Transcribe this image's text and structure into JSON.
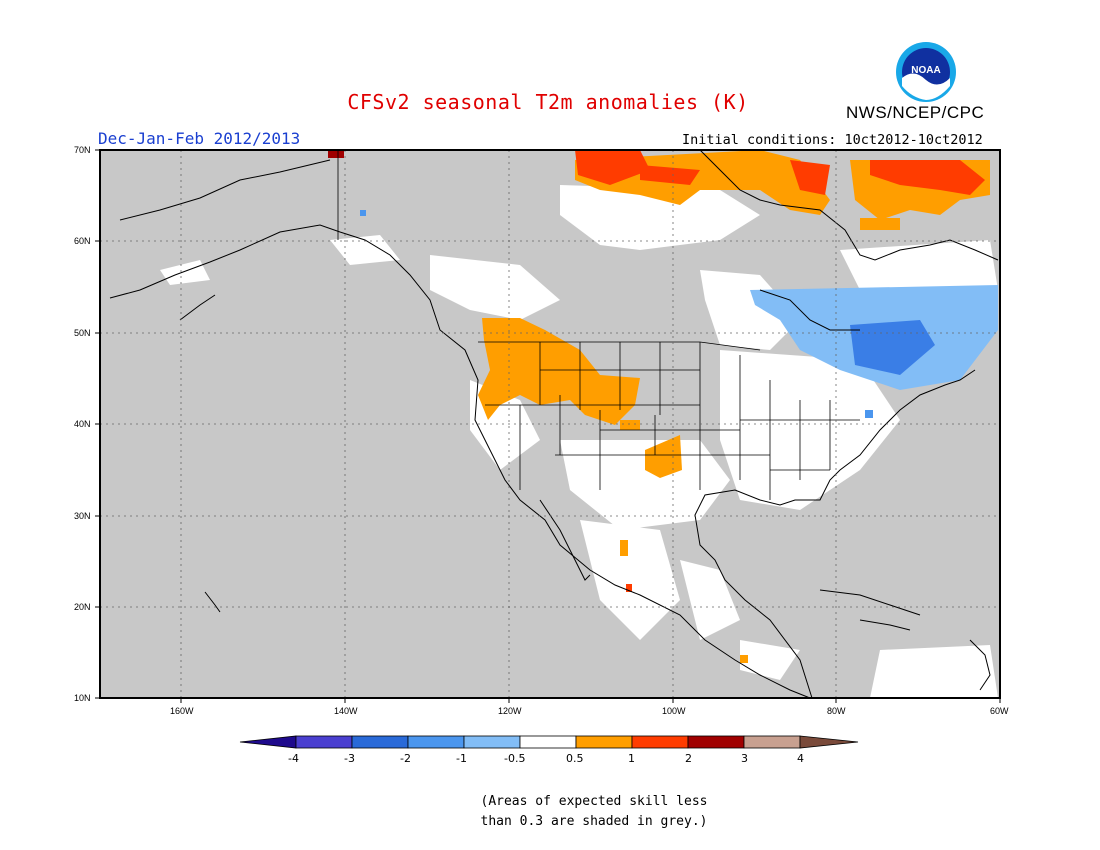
{
  "header": {
    "title": "CFSv2 seasonal T2m anomalies (K)",
    "agency": "NWS/NCEP/CPC",
    "period": "Dec-Jan-Feb 2012/2013",
    "initial_conditions": "Initial conditions: 10ct2012-10ct2012"
  },
  "logo": {
    "text": "NOAA",
    "name": "noaa-logo"
  },
  "map": {
    "background_color": "#c8c8c8",
    "lon_range": [
      -170,
      -60
    ],
    "lat_range": [
      10,
      70
    ],
    "lat_labels": [
      "70N",
      "60N",
      "50N",
      "40N",
      "30N",
      "20N",
      "10N"
    ],
    "lon_labels": [
      "160W",
      "140W",
      "120W",
      "100W",
      "80W",
      "60W"
    ],
    "grid": "dotted"
  },
  "colorbar": {
    "ticks": [
      "-4",
      "-3",
      "-2",
      "-1",
      "-0.5",
      "0.5",
      "1",
      "2",
      "3",
      "4"
    ],
    "colors": [
      "#1e0a8c",
      "#4a3fd0",
      "#2a6ad8",
      "#4b96ee",
      "#82bdf6",
      "#ffffff",
      "#ff9e00",
      "#ff3c00",
      "#a00000",
      "#c8a090",
      "#7a4a3a"
    ]
  },
  "footnote": {
    "line1": "(Areas of expected skill less",
    "line2": "than 0.3 are shaded in grey.)"
  }
}
